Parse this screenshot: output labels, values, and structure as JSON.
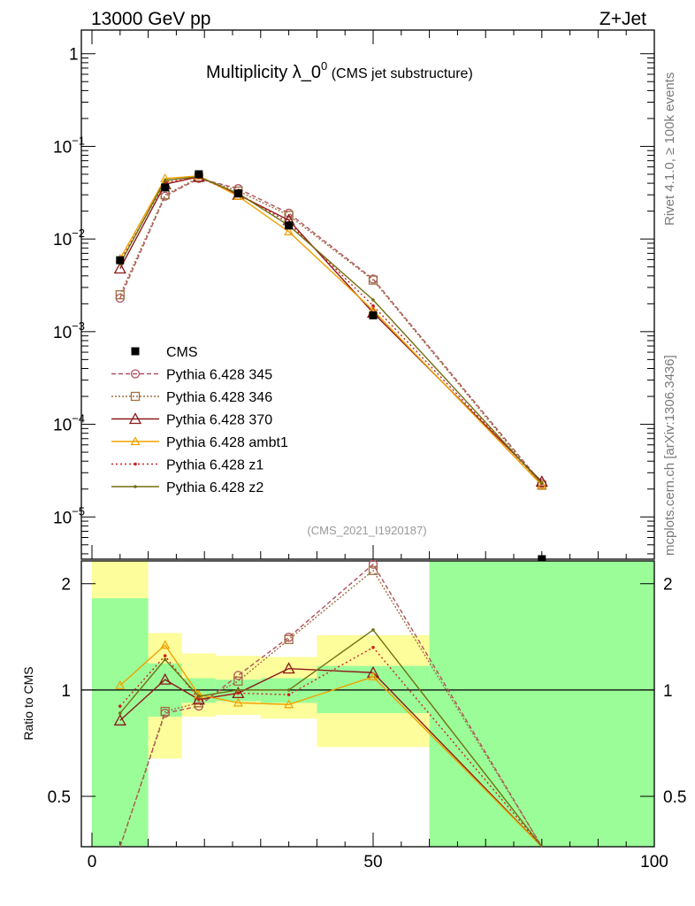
{
  "header": {
    "left": "13000 GeV pp",
    "right": "Z+Jet"
  },
  "side_text": {
    "rivet": "Rivet 4.1.0, ≥ 100k events",
    "mcplots": "mcplots.cern.ch [arXiv:1306.3436]"
  },
  "colors": {
    "cms": "#000000",
    "p345": "#b05060",
    "p346": "#a07040",
    "p370": "#8b1a1a",
    "ambt1": "#f0a000",
    "z1": "#cc2020",
    "z2": "#707010",
    "band_inner": "#9bfd98",
    "band_outer": "#fdfd9b"
  },
  "chart_data": {
    "type": "line",
    "title_main": "Multiplicity λ_0",
    "title_sup": "0",
    "title_sub": " (CMS jet substructure)",
    "watermark": "(CMS_2021_I1920187)",
    "xlabel": "",
    "ylabel_ratio": "Ratio to CMS",
    "xlim": [
      0,
      100
    ],
    "ylim_main": [
      3.5e-06,
      1.8
    ],
    "ylim_ratio": [
      0.36,
      2.32
    ],
    "x_ticks": [
      {
        "value": 0,
        "label": "0"
      },
      {
        "value": 50,
        "label": "50"
      },
      {
        "value": 100,
        "label": "100"
      }
    ],
    "y_ticks_main": [
      {
        "value": 1,
        "base": "1",
        "exp": ""
      },
      {
        "value": 0.1,
        "base": "10",
        "exp": "−1"
      },
      {
        "value": 0.01,
        "base": "10",
        "exp": "−2"
      },
      {
        "value": 0.001,
        "base": "10",
        "exp": "−3"
      },
      {
        "value": 0.0001,
        "base": "10",
        "exp": "−4"
      },
      {
        "value": 1e-05,
        "base": "10",
        "exp": "−5"
      }
    ],
    "y_ticks_ratio": [
      {
        "value": 0.5,
        "label": "0.5"
      },
      {
        "value": 1,
        "label": "1"
      },
      {
        "value": 2,
        "label": "2"
      }
    ],
    "bins": [
      [
        0,
        10
      ],
      [
        10,
        16
      ],
      [
        16,
        22
      ],
      [
        22,
        30
      ],
      [
        30,
        40
      ],
      [
        40,
        60
      ],
      [
        60,
        100
      ]
    ],
    "cms": {
      "name": "CMS",
      "x": [
        5,
        13,
        19,
        26,
        35,
        50,
        80
      ],
      "y": [
        0.0059,
        0.036,
        0.05,
        0.031,
        0.014,
        0.0015,
        3.4e-06
      ],
      "band_inner": [
        [
          0.3,
          1.82
        ],
        [
          0.84,
          1.19
        ],
        [
          0.92,
          1.08
        ],
        [
          0.93,
          1.07
        ],
        [
          0.92,
          1.08
        ],
        [
          0.86,
          1.17
        ],
        [
          0.3,
          2.4
        ]
      ],
      "band_outer": [
        [
          0.3,
          2.4
        ],
        [
          0.64,
          1.45
        ],
        [
          0.84,
          1.27
        ],
        [
          0.85,
          1.25
        ],
        [
          0.83,
          1.24
        ],
        [
          0.69,
          1.43
        ],
        [
          0.3,
          2.4
        ]
      ]
    },
    "series": [
      {
        "name": "Pythia 6.428 345",
        "color_key": "p345",
        "marker": "circle",
        "dash": "5,3",
        "y": [
          0.0023,
          0.029,
          0.045,
          0.035,
          0.019,
          0.0037,
          2.3e-05
        ],
        "ratio": [
          0.3,
          0.86,
          0.9,
          1.1,
          1.41,
          2.27,
          0.3
        ]
      },
      {
        "name": "Pythia 6.428 346",
        "color_key": "p346",
        "marker": "square",
        "dash": "2,2",
        "y": [
          0.0025,
          0.03,
          0.046,
          0.033,
          0.018,
          0.0036,
          2.2e-05
        ],
        "ratio": [
          0.3,
          0.87,
          0.92,
          1.06,
          1.39,
          2.18,
          0.3
        ]
      },
      {
        "name": "Pythia 6.428 370",
        "color_key": "p370",
        "marker": "triangle",
        "dash": "",
        "y": [
          0.0048,
          0.039,
          0.047,
          0.03,
          0.016,
          0.0016,
          2.4e-05
        ],
        "ratio": [
          0.82,
          1.07,
          0.94,
          0.98,
          1.15,
          1.12,
          0.3
        ]
      },
      {
        "name": "Pythia 6.428 ambt1",
        "color_key": "ambt1",
        "marker": "triangle-small",
        "dash": "",
        "y": [
          0.0061,
          0.045,
          0.048,
          0.029,
          0.012,
          0.0017,
          2.2e-05
        ],
        "ratio": [
          1.03,
          1.34,
          0.97,
          0.92,
          0.91,
          1.09,
          0.3
        ]
      },
      {
        "name": "Pythia 6.428 z1",
        "color_key": "z1",
        "marker": "dot",
        "dash": "2,3",
        "y": [
          0.0057,
          0.041,
          0.046,
          0.031,
          0.015,
          0.0019,
          2.3e-05
        ],
        "ratio": [
          0.9,
          1.25,
          0.94,
          0.98,
          0.97,
          1.32,
          0.3
        ]
      },
      {
        "name": "Pythia 6.428 z2",
        "color_key": "z2",
        "marker": "dot",
        "dash": "",
        "y": [
          0.0054,
          0.043,
          0.047,
          0.031,
          0.014,
          0.0022,
          2.3e-05
        ],
        "ratio": [
          0.86,
          1.22,
          0.96,
          1.0,
          1.0,
          1.48,
          0.3
        ]
      }
    ]
  }
}
